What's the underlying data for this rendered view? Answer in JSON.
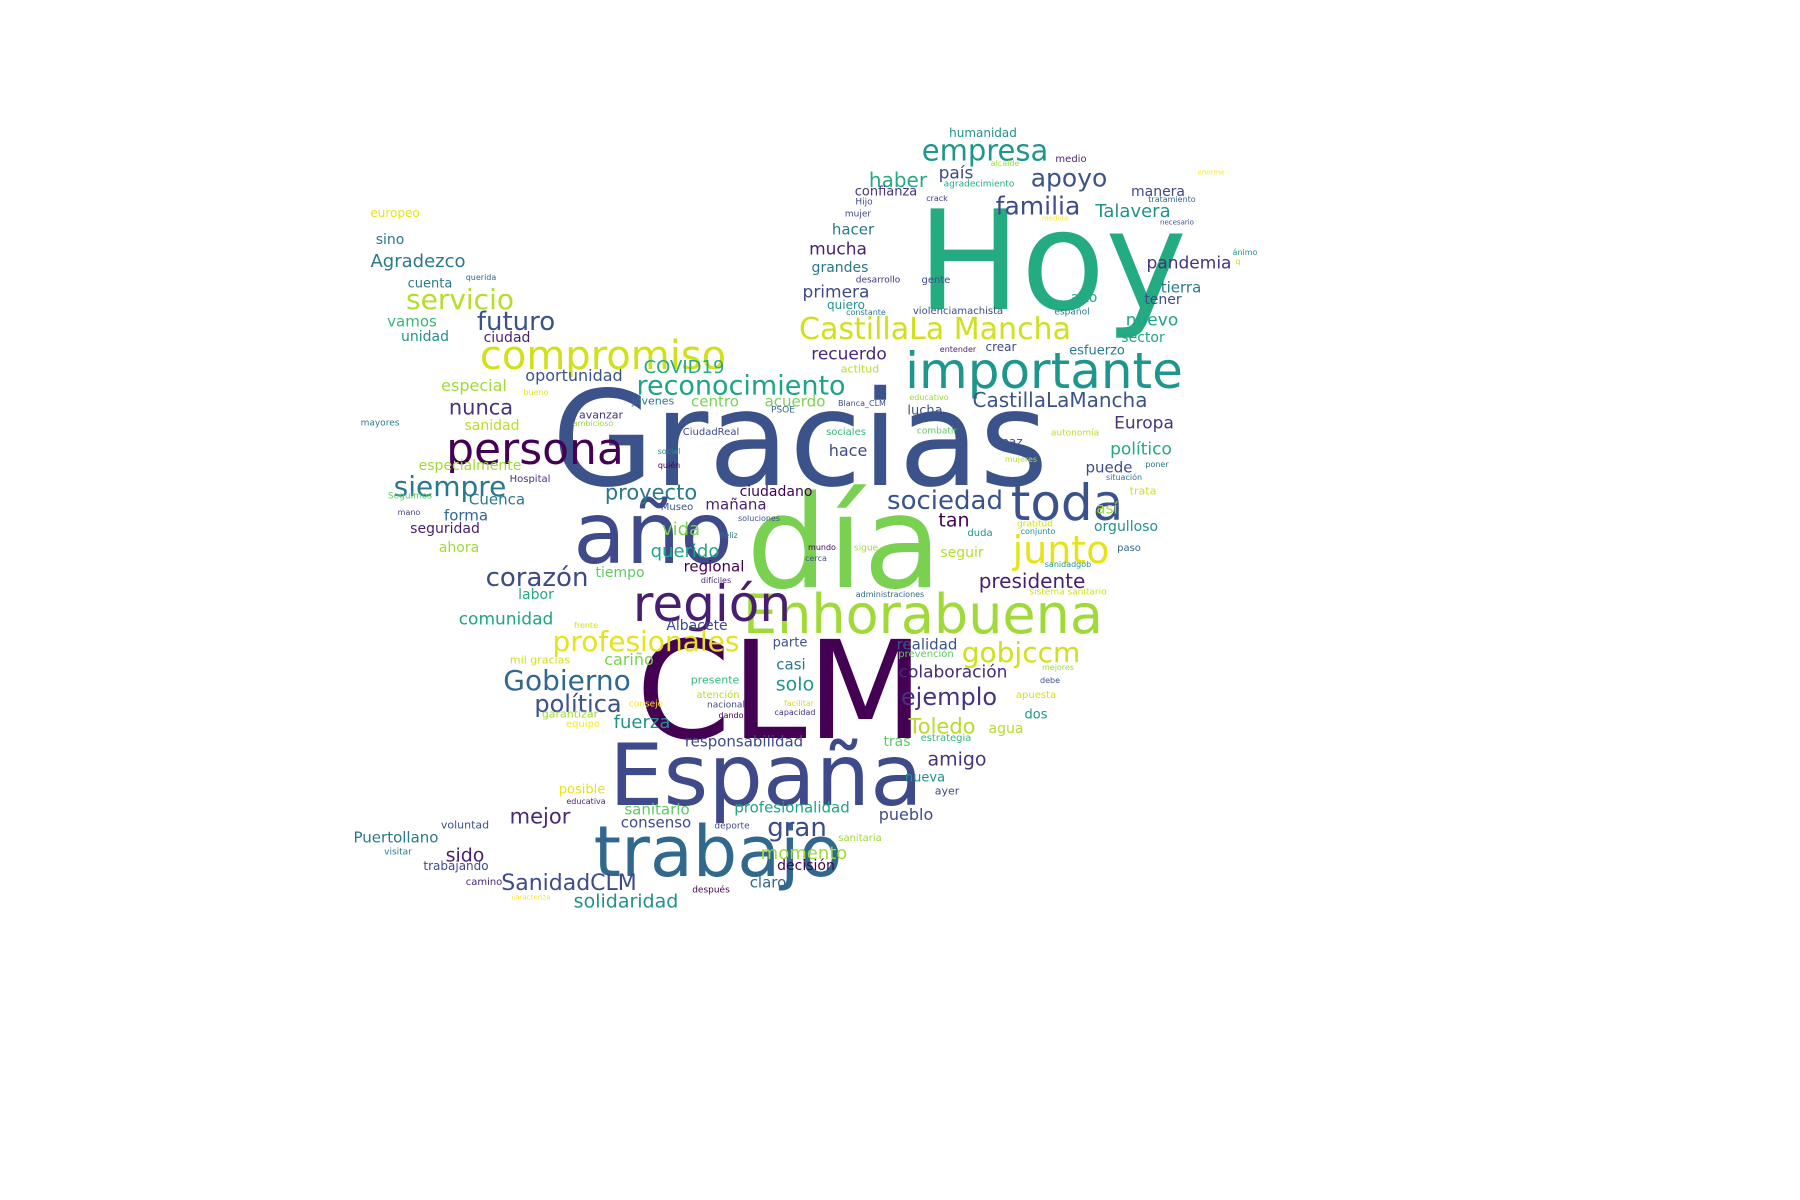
{
  "words": [
    {
      "text": "Gracias",
      "color": "#3b528b"
    },
    {
      "text": "Hoy",
      "color": "#25ab82"
    },
    {
      "text": "CLM",
      "color": "#440154"
    },
    {
      "text": "día",
      "color": "#7ad151"
    },
    {
      "text": "España",
      "color": "#3e4a89"
    },
    {
      "text": "año",
      "color": "#3e4a89"
    },
    {
      "text": "trabajo",
      "color": "#31688e"
    },
    {
      "text": "Enhorabuena",
      "color": "#a0da39"
    },
    {
      "text": "importante",
      "color": "#1f968b"
    },
    {
      "text": "región",
      "color": "#481f70"
    },
    {
      "text": "toda",
      "color": "#3b528b"
    },
    {
      "text": "persona",
      "color": "#440154"
    },
    {
      "text": "compromiso",
      "color": "#d0e11c"
    },
    {
      "text": "junto",
      "color": "#e5e419"
    },
    {
      "text": "CastillaLa Mancha",
      "color": "#d0e11c"
    },
    {
      "text": "empresa",
      "color": "#1f968b"
    },
    {
      "text": "profesionales",
      "color": "#e5e419"
    },
    {
      "text": "Gobierno",
      "color": "#31688e"
    },
    {
      "text": "gobjccm",
      "color": "#d0e11c"
    },
    {
      "text": "reconocimiento",
      "color": "#20a486"
    },
    {
      "text": "servicio",
      "color": "#b5de2b"
    },
    {
      "text": "siempre",
      "color": "#2a788e"
    },
    {
      "text": "corazón",
      "color": "#3e4a89"
    },
    {
      "text": "sociedad",
      "color": "#3b528b"
    },
    {
      "text": "futuro",
      "color": "#3b528b"
    },
    {
      "text": "apoyo",
      "color": "#3b528b"
    },
    {
      "text": "familia",
      "color": "#3e4a89"
    },
    {
      "text": "política",
      "color": "#3b528b"
    },
    {
      "text": "ejemplo",
      "color": "#46327e"
    },
    {
      "text": "gran",
      "color": "#3e4a89"
    },
    {
      "text": "SanidadCLM",
      "color": "#3e4a89"
    },
    {
      "text": "CastillaLaMancha",
      "color": "#3b528b"
    },
    {
      "text": "presidente",
      "color": "#481f70"
    },
    {
      "text": "proyecto",
      "color": "#2a788e"
    },
    {
      "text": "Toledo",
      "color": "#b5de2b"
    },
    {
      "text": "nunca",
      "color": "#46327e"
    },
    {
      "text": "mejor",
      "color": "#482878"
    },
    {
      "text": "solidaridad",
      "color": "#21918c"
    },
    {
      "text": "Talavera",
      "color": "#21918c"
    },
    {
      "text": "amigo",
      "color": "#46327e"
    },
    {
      "text": "haber",
      "color": "#25ab82"
    },
    {
      "text": "COVID19",
      "color": "#25ab82"
    },
    {
      "text": "momento",
      "color": "#a0da39"
    },
    {
      "text": "querido",
      "color": "#22a884"
    },
    {
      "text": "Agradezco",
      "color": "#2a788e"
    },
    {
      "text": "colaboración",
      "color": "#482878"
    },
    {
      "text": "comunidad",
      "color": "#20a486"
    },
    {
      "text": "país",
      "color": "#3e4a89"
    },
    {
      "text": "pandemia",
      "color": "#46327e"
    },
    {
      "text": "mucha",
      "color": "#481f70"
    },
    {
      "text": "primera",
      "color": "#3e4a89"
    },
    {
      "text": "recuerdo",
      "color": "#482878"
    },
    {
      "text": "nuevo",
      "color": "#20a486"
    },
    {
      "text": "vida",
      "color": "#7ad151"
    },
    {
      "text": "fuerza",
      "color": "#21918c"
    },
    {
      "text": "solo",
      "color": "#1f968b"
    },
    {
      "text": "Europa",
      "color": "#46327e"
    },
    {
      "text": "político",
      "color": "#22a884"
    },
    {
      "text": "oportunidad",
      "color": "#3b528b"
    },
    {
      "text": "especial",
      "color": "#a0da39"
    },
    {
      "text": "sido",
      "color": "#481f70"
    },
    {
      "text": "tan",
      "color": "#440154"
    },
    {
      "text": "Puertollano",
      "color": "#2a788e"
    },
    {
      "text": "claro",
      "color": "#31688e"
    },
    {
      "text": "pueblo",
      "color": "#3e4a89"
    },
    {
      "text": "consenso",
      "color": "#3e4a89"
    },
    {
      "text": "sanitario",
      "color": "#5ec962"
    },
    {
      "text": "profesionalidad",
      "color": "#20a486"
    },
    {
      "text": "realidad",
      "color": "#3b528b"
    },
    {
      "text": "cariño",
      "color": "#7ad151"
    },
    {
      "text": "responsabilidad",
      "color": "#3e4a89"
    },
    {
      "text": "mañana",
      "color": "#481f70"
    },
    {
      "text": "ciudadano",
      "color": "#440154"
    },
    {
      "text": "centro",
      "color": "#7ad151"
    },
    {
      "text": "acuerdo",
      "color": "#7ad151"
    },
    {
      "text": "Cuenca",
      "color": "#2a788e"
    },
    {
      "text": "forma",
      "color": "#31688e"
    },
    {
      "text": "seguridad",
      "color": "#481f70"
    },
    {
      "text": "hace",
      "color": "#3e4a89"
    },
    {
      "text": "puede",
      "color": "#3e4a89"
    },
    {
      "text": "así",
      "color": "#a0da39"
    },
    {
      "text": "orgulloso",
      "color": "#21918c"
    },
    {
      "text": "seguir",
      "color": "#b5de2b"
    },
    {
      "text": "grandes",
      "color": "#2a788e"
    },
    {
      "text": "hacer",
      "color": "#2a788e"
    },
    {
      "text": "confianza",
      "color": "#46327e"
    },
    {
      "text": "vamos",
      "color": "#35b779"
    },
    {
      "text": "ciudad",
      "color": "#481f70"
    },
    {
      "text": "unidad",
      "color": "#21918c"
    },
    {
      "text": "sino",
      "color": "#2a788e"
    },
    {
      "text": "cuenta",
      "color": "#2a788e"
    },
    {
      "text": "especialmente",
      "color": "#a0da39"
    },
    {
      "text": "sanidad",
      "color": "#b5de2b"
    },
    {
      "text": "ahora",
      "color": "#a0da39"
    },
    {
      "text": "regional",
      "color": "#440154"
    },
    {
      "text": "tiempo",
      "color": "#5ec962"
    },
    {
      "text": "labor",
      "color": "#22a884"
    },
    {
      "text": "Albacete",
      "color": "#3e4a89"
    },
    {
      "text": "casi",
      "color": "#2a788e"
    },
    {
      "text": "parte",
      "color": "#3b528b"
    },
    {
      "text": "decisión",
      "color": "#440154"
    },
    {
      "text": "manera",
      "color": "#3e4a89"
    },
    {
      "text": "tierra",
      "color": "#2a788e"
    },
    {
      "text": "tener",
      "color": "#3e4a89"
    },
    {
      "text": "alto",
      "color": "#22a884"
    },
    {
      "text": "sector",
      "color": "#20a486"
    },
    {
      "text": "esfuerzo",
      "color": "#2a788e"
    },
    {
      "text": "lucha",
      "color": "#3b528b"
    },
    {
      "text": "dos",
      "color": "#1f968b"
    },
    {
      "text": "agua",
      "color": "#b5de2b"
    },
    {
      "text": "tras",
      "color": "#5ec962"
    },
    {
      "text": "nueva",
      "color": "#21918c"
    },
    {
      "text": "ayer",
      "color": "#3e4a89"
    },
    {
      "text": "posible",
      "color": "#e5e419"
    },
    {
      "text": "trabajando",
      "color": "#3e4a89"
    },
    {
      "text": "voluntad",
      "color": "#3b528b"
    },
    {
      "text": "camino",
      "color": "#482878"
    },
    {
      "text": "crear",
      "color": "#3e4a89"
    },
    {
      "text": "humanidad",
      "color": "#21918c"
    },
    {
      "text": "medio",
      "color": "#482878"
    },
    {
      "text": "quiero",
      "color": "#21918c"
    },
    {
      "text": "europeo",
      "color": "#e5e419"
    },
    {
      "text": "jóvenes",
      "color": "#2a788e"
    },
    {
      "text": "mil gracias",
      "color": "#d0e11c"
    },
    {
      "text": "presente",
      "color": "#35b779"
    },
    {
      "text": "CiudadReal",
      "color": "#3e4a89"
    },
    {
      "text": "Museo",
      "color": "#3b528b"
    },
    {
      "text": "Hospital",
      "color": "#46327e"
    },
    {
      "text": "sociales",
      "color": "#35b779"
    },
    {
      "text": "combatir",
      "color": "#5ec962"
    },
    {
      "text": "paz",
      "color": "#3b528b"
    },
    {
      "text": "actitud",
      "color": "#b5de2b"
    },
    {
      "text": "avanzar",
      "color": "#46327e"
    },
    {
      "text": "autonomía",
      "color": "#b5de2b"
    },
    {
      "text": "duda",
      "color": "#21918c"
    },
    {
      "text": "paso",
      "color": "#31688e"
    },
    {
      "text": "gente",
      "color": "#3e4a89"
    },
    {
      "text": "desarrollo",
      "color": "#46327e"
    },
    {
      "text": "violenciamachista",
      "color": "#3e4a89"
    },
    {
      "text": "español",
      "color": "#2a788e"
    },
    {
      "text": "entender",
      "color": "#482878"
    },
    {
      "text": "educativo",
      "color": "#a0da39"
    },
    {
      "text": "Blanca_CLM",
      "color": "#3e4a89"
    },
    {
      "text": "PSOE",
      "color": "#31688e"
    },
    {
      "text": "ambicioso",
      "color": "#a0da39"
    },
    {
      "text": "bueno",
      "color": "#e5e419"
    },
    {
      "text": "mayores",
      "color": "#2a788e"
    },
    {
      "text": "social",
      "color": "#1f968b"
    },
    {
      "text": "quién",
      "color": "#440154"
    },
    {
      "text": "mujeres",
      "color": "#b5de2b"
    },
    {
      "text": "poner",
      "color": "#2a788e"
    },
    {
      "text": "situación",
      "color": "#2a788e"
    },
    {
      "text": "trata",
      "color": "#d0e11c"
    },
    {
      "text": "Seguimos",
      "color": "#5ec962"
    },
    {
      "text": "mano",
      "color": "#3e4a89"
    },
    {
      "text": "soluciones",
      "color": "#3b528b"
    },
    {
      "text": "Feliz",
      "color": "#2a788e"
    },
    {
      "text": "gratitud",
      "color": "#d0e11c"
    },
    {
      "text": "conjunto",
      "color": "#21918c"
    },
    {
      "text": "mundo",
      "color": "#440154"
    },
    {
      "text": "sigue",
      "color": "#a0da39"
    },
    {
      "text": "sanidadgob",
      "color": "#21918c"
    },
    {
      "text": "cerca",
      "color": "#3b528b"
    },
    {
      "text": "difíciles",
      "color": "#482878"
    },
    {
      "text": "administraciones",
      "color": "#31688e"
    },
    {
      "text": "sistema sanitario",
      "color": "#d0e11c"
    },
    {
      "text": "frente",
      "color": "#d0e11c"
    },
    {
      "text": "prevención",
      "color": "#5ec962"
    },
    {
      "text": "mejores",
      "color": "#a0da39"
    },
    {
      "text": "debe",
      "color": "#3b528b"
    },
    {
      "text": "atención",
      "color": "#b5de2b"
    },
    {
      "text": "apuesta",
      "color": "#d0e11c"
    },
    {
      "text": "facilitar",
      "color": "#d0e11c"
    },
    {
      "text": "nacional",
      "color": "#3e4a89"
    },
    {
      "text": "dando",
      "color": "#440154"
    },
    {
      "text": "capacidad",
      "color": "#46327e"
    },
    {
      "text": "consejo",
      "color": "#fde725"
    },
    {
      "text": "garantizar",
      "color": "#a0da39"
    },
    {
      "text": "equipo",
      "color": "#fde725"
    },
    {
      "text": "estrategia",
      "color": "#35b779"
    },
    {
      "text": "educativa",
      "color": "#482878"
    },
    {
      "text": "deporte",
      "color": "#3e4a89"
    },
    {
      "text": "sanitaria",
      "color": "#a0da39"
    },
    {
      "text": "visitar",
      "color": "#2a788e"
    },
    {
      "text": "después",
      "color": "#440154"
    },
    {
      "text": "caracteriza",
      "color": "#fde725"
    },
    {
      "text": "alcalde",
      "color": "#a0da39"
    },
    {
      "text": "agradecimiento",
      "color": "#22a884"
    },
    {
      "text": "crack",
      "color": "#46327e"
    },
    {
      "text": "Hijo",
      "color": "#3e4a89"
    },
    {
      "text": "mujer",
      "color": "#3e4a89"
    },
    {
      "text": "medida",
      "color": "#fde725"
    },
    {
      "text": "tratamiento",
      "color": "#31688e"
    },
    {
      "text": "necesario",
      "color": "#3b528b"
    },
    {
      "text": "enorme",
      "color": "#fde725"
    },
    {
      "text": "ánimo",
      "color": "#1f968b"
    },
    {
      "text": "q",
      "color": "#d0e11c"
    },
    {
      "text": "querida",
      "color": "#31688e"
    },
    {
      "text": "constante",
      "color": "#2a788e"
    }
  ]
}
